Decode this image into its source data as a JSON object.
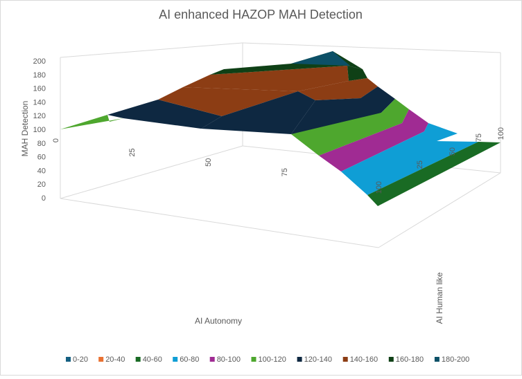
{
  "chart_data": {
    "type": "surface",
    "title": "AI enhanced HAZOP MAH Detection",
    "xlabel": "AI Autonomy",
    "ylabel": "AI Human like",
    "zlabel": "MAH Detection",
    "x_ticks": [
      "0",
      "25",
      "50",
      "75"
    ],
    "y_ticks": [
      "25",
      "50",
      "75",
      "100",
      "100"
    ],
    "z_ticks": [
      "0",
      "20",
      "40",
      "60",
      "80",
      "100",
      "120",
      "140",
      "160",
      "180",
      "200"
    ],
    "zlim": [
      0,
      200
    ],
    "grid": true,
    "legend_position": "bottom",
    "legend": [
      {
        "label": "0-20",
        "color": "#156082"
      },
      {
        "label": "20-40",
        "color": "#e97132"
      },
      {
        "label": "40-60",
        "color": "#196b24"
      },
      {
        "label": "60-80",
        "color": "#0f9ed5"
      },
      {
        "label": "80-100",
        "color": "#a02b93"
      },
      {
        "label": "100-120",
        "color": "#4ea72e"
      },
      {
        "label": "120-140",
        "color": "#0e2841"
      },
      {
        "label": "140-160",
        "color": "#8c3d14"
      },
      {
        "label": "160-180",
        "color": "#0f4016"
      },
      {
        "label": "180-200",
        "color": "#0c5067"
      }
    ]
  }
}
